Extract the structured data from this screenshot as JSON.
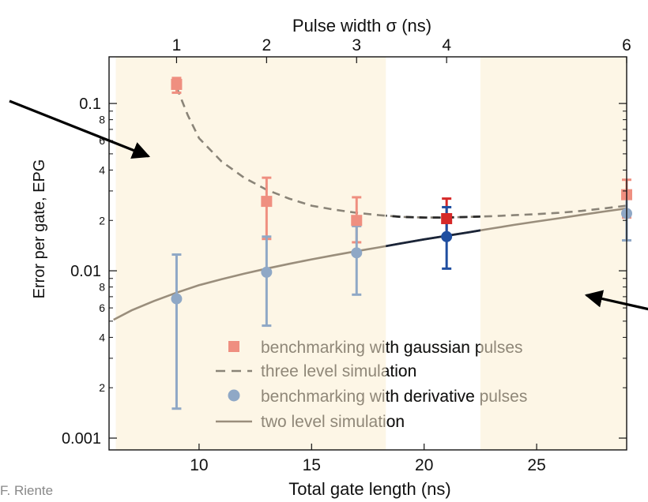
{
  "credit": "F. Riente",
  "colors": {
    "shade": "#fdf6e6",
    "gaussian": "#ef8f80",
    "gaussian_dark": "#d62828",
    "derivative": "#8fa8c6",
    "derivative_dark": "#1f4ea0",
    "two_level": "#9a8e7c",
    "three_level": "#8a8478",
    "axis": "#111111"
  },
  "chart_data": {
    "type": "scatter",
    "xlabel": "Total gate length (ns)",
    "ylabel": "Error per gate, EPG",
    "top_xlabel": "Pulse width σ (ns)",
    "xlim": [
      6,
      29
    ],
    "ylim": [
      0.00085,
      0.19
    ],
    "yscale": "log",
    "x_ticks": [
      {
        "value": 10,
        "label": "10"
      },
      {
        "value": 15,
        "label": "15"
      },
      {
        "value": 20,
        "label": "20"
      },
      {
        "value": 25,
        "label": "25"
      }
    ],
    "top_ticks": [
      {
        "value": 9,
        "label": "1"
      },
      {
        "value": 13,
        "label": "2"
      },
      {
        "value": 17,
        "label": "3"
      },
      {
        "value": 21,
        "label": "4"
      },
      {
        "value": 29,
        "label": "6"
      }
    ],
    "y_major_ticks": [
      {
        "value": 0.001,
        "label": "0.001"
      },
      {
        "value": 0.01,
        "label": "0.01"
      },
      {
        "value": 0.1,
        "label": "0.1"
      }
    ],
    "y_minor_labels": [
      {
        "value": 0.002,
        "label": "2"
      },
      {
        "value": 0.004,
        "label": "4"
      },
      {
        "value": 0.006,
        "label": "6"
      },
      {
        "value": 0.008,
        "label": "8"
      },
      {
        "value": 0.02,
        "label": "2"
      },
      {
        "value": 0.04,
        "label": "4"
      },
      {
        "value": 0.06,
        "label": "6"
      },
      {
        "value": 0.08,
        "label": "8"
      }
    ],
    "shaded_regions": [
      [
        6.3,
        18.3
      ],
      [
        22.5,
        29
      ]
    ],
    "series": [
      {
        "name": "benchmarking with gaussian pulses",
        "marker": "square",
        "points": [
          {
            "x": 9,
            "y": 0.13,
            "ylo": 0.116,
            "yhi": 0.142
          },
          {
            "x": 13,
            "y": 0.026,
            "ylo": 0.0155,
            "yhi": 0.036
          },
          {
            "x": 17,
            "y": 0.02,
            "ylo": 0.0148,
            "yhi": 0.0275
          },
          {
            "x": 21,
            "y": 0.0205,
            "ylo": 0.0163,
            "yhi": 0.027
          },
          {
            "x": 29,
            "y": 0.0285,
            "ylo": 0.0208,
            "yhi": 0.035
          }
        ]
      },
      {
        "name": "three level simulation",
        "style": "dashed",
        "x": [
          9,
          9.5,
          10,
          11,
          12,
          13,
          14,
          15,
          16,
          17,
          18,
          19,
          20,
          21,
          22,
          23,
          24,
          25,
          26,
          27,
          28,
          29
        ],
        "y": [
          0.125,
          0.085,
          0.062,
          0.045,
          0.036,
          0.0305,
          0.027,
          0.0245,
          0.0232,
          0.0222,
          0.0215,
          0.021,
          0.0208,
          0.0208,
          0.021,
          0.0212,
          0.0215,
          0.0218,
          0.0222,
          0.0228,
          0.0236,
          0.0245
        ]
      },
      {
        "name": "benchmarking with derivative pulses",
        "marker": "circle",
        "points": [
          {
            "x": 9,
            "y": 0.0068,
            "ylo": 0.0015,
            "yhi": 0.0125
          },
          {
            "x": 13,
            "y": 0.0098,
            "ylo": 0.0047,
            "yhi": 0.016
          },
          {
            "x": 17,
            "y": 0.0128,
            "ylo": 0.0072,
            "yhi": 0.0185
          },
          {
            "x": 21,
            "y": 0.016,
            "ylo": 0.0103,
            "yhi": 0.024
          },
          {
            "x": 29,
            "y": 0.022,
            "ylo": 0.0152,
            "yhi": 0.03
          }
        ]
      },
      {
        "name": "two level simulation",
        "style": "solid",
        "x": [
          6.2,
          7,
          8,
          9,
          10,
          11,
          12,
          13,
          14,
          15,
          16,
          17,
          18,
          19,
          20,
          21,
          22,
          23,
          24,
          25,
          26,
          27,
          28,
          29
        ],
        "y": [
          0.0051,
          0.0058,
          0.0066,
          0.0074,
          0.0082,
          0.0089,
          0.0096,
          0.0103,
          0.011,
          0.0117,
          0.0124,
          0.0131,
          0.0138,
          0.0146,
          0.0154,
          0.0162,
          0.017,
          0.0179,
          0.0188,
          0.0197,
          0.0206,
          0.0216,
          0.0226,
          0.0236
        ]
      }
    ]
  }
}
